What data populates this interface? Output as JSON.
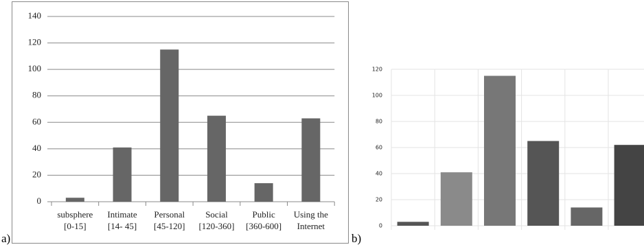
{
  "chart_data": [
    {
      "type": "bar",
      "panel_label": "a)",
      "categories": [
        "subsphere\n[0-15]",
        "Intimate\n[14- 45]",
        "Personal\n[45-120]",
        "Social\n[120-360]",
        "Public\n[360-600]",
        "Using the\nInternet"
      ],
      "values": [
        3,
        41,
        115,
        65,
        14,
        63
      ],
      "color": "#666666",
      "ylim": [
        0,
        140
      ],
      "yticks": [
        0,
        20,
        40,
        60,
        80,
        100,
        120,
        140
      ],
      "grid": true
    },
    {
      "type": "bar",
      "panel_label": "b)",
      "categories": [
        null,
        null,
        null,
        null,
        null,
        null
      ],
      "values": [
        3,
        41,
        115,
        65,
        14,
        62
      ],
      "colors": [
        "#555555",
        "#8a8a8a",
        "#777777",
        "#555555",
        "#666666",
        "#444444"
      ],
      "ylim": [
        0,
        120
      ],
      "yticks": [
        0,
        20,
        40,
        60,
        80,
        100,
        120
      ],
      "grid": true
    }
  ]
}
